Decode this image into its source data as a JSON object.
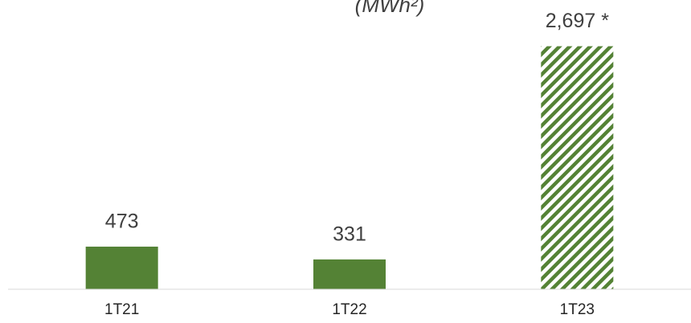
{
  "chart_data": {
    "type": "bar",
    "title": "(MWh²)",
    "categories": [
      "1T21",
      "1T22",
      "1T23"
    ],
    "values": [
      473,
      331,
      2697
    ],
    "value_labels": [
      "473",
      "331",
      "2,697 *"
    ],
    "hatched": [
      false,
      false,
      true
    ],
    "color": "#548235",
    "ylim": [
      0,
      3210
    ]
  }
}
